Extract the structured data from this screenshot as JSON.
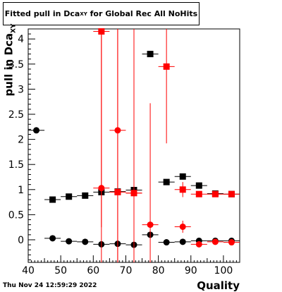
{
  "title": {
    "main": "Fitted pull in Dca",
    "sub": "XY",
    "rest": " for Global Rec All NoHits"
  },
  "ylabel": {
    "main": "pull in Dca",
    "sub": "XY"
  },
  "xlabel": "Quality",
  "timestamp": "Thu Nov 24 12:59:29 2022",
  "chart_data": {
    "type": "scatter",
    "xlim": [
      40,
      105
    ],
    "ylim": [
      -0.45,
      4.2
    ],
    "x_ticks": [
      40,
      50,
      60,
      70,
      80,
      90,
      100
    ],
    "y_ticks": [
      0,
      0.5,
      1,
      1.5,
      2,
      2.5,
      3,
      3.5,
      4
    ],
    "grid": false,
    "series": [
      {
        "marker": "square",
        "color": "#000000",
        "points": [
          {
            "x": 47.5,
            "y": 0.8,
            "ex": 2.5,
            "ey": 0.03
          },
          {
            "x": 52.5,
            "y": 0.86,
            "ex": 2.5,
            "ey": 0.03
          },
          {
            "x": 57.5,
            "y": 0.88,
            "ex": 2.5,
            "ey": 0.03
          },
          {
            "x": 62.5,
            "y": 0.95,
            "ex": 2.5,
            "ey": 0.03
          },
          {
            "x": 67.5,
            "y": 0.96,
            "ex": 2.5,
            "ey": 0.03
          },
          {
            "x": 72.5,
            "y": 0.99,
            "ex": 2.5,
            "ey": 0.03
          },
          {
            "x": 77.5,
            "y": 3.7,
            "ex": 2.5,
            "ey": 0.05
          },
          {
            "x": 82.5,
            "y": 1.15,
            "ex": 2.5,
            "ey": 0.03
          },
          {
            "x": 87.5,
            "y": 1.26,
            "ex": 2.5,
            "ey": 0.03
          },
          {
            "x": 92.5,
            "y": 1.08,
            "ex": 2.5,
            "ey": 0.03
          },
          {
            "x": 97.5,
            "y": 0.92,
            "ex": 2.5,
            "ey": 0.03
          },
          {
            "x": 102.5,
            "y": 0.91,
            "ex": 2.5,
            "ey": 0.03
          }
        ]
      },
      {
        "marker": "circle",
        "color": "#000000",
        "points": [
          {
            "x": 42.5,
            "y": 2.18,
            "ex": 2.5,
            "ey": 0.03
          },
          {
            "x": 47.5,
            "y": 0.03,
            "ex": 2.5,
            "ey": 0.02
          },
          {
            "x": 52.5,
            "y": -0.03,
            "ex": 2.5,
            "ey": 0.02
          },
          {
            "x": 57.5,
            "y": -0.04,
            "ex": 2.5,
            "ey": 0.02
          },
          {
            "x": 62.5,
            "y": -0.09,
            "ex": 2.5,
            "ey": 0.02
          },
          {
            "x": 67.5,
            "y": -0.08,
            "ex": 2.5,
            "ey": 0.02
          },
          {
            "x": 72.5,
            "y": -0.1,
            "ex": 2.5,
            "ey": 0.02
          },
          {
            "x": 77.5,
            "y": 0.1,
            "ex": 2.5,
            "ey": 0.04
          },
          {
            "x": 82.5,
            "y": -0.05,
            "ex": 2.5,
            "ey": 0.02
          },
          {
            "x": 87.5,
            "y": -0.04,
            "ex": 2.5,
            "ey": 0.02
          },
          {
            "x": 92.5,
            "y": -0.02,
            "ex": 2.5,
            "ey": 0.02
          },
          {
            "x": 97.5,
            "y": -0.02,
            "ex": 2.5,
            "ey": 0.02
          },
          {
            "x": 102.5,
            "y": -0.02,
            "ex": 2.5,
            "ey": 0.02
          }
        ]
      },
      {
        "marker": "square",
        "color": "#ff0000",
        "points": [
          {
            "x": 62.5,
            "y": 4.15,
            "ex": 2.5,
            "ey": 3.9
          },
          {
            "x": 67.5,
            "y": 0.95,
            "ex": 2.5,
            "ey": 3.9
          },
          {
            "x": 72.5,
            "y": 0.93,
            "ex": 2.5,
            "ey": 3.9
          },
          {
            "x": 82.5,
            "y": 3.45,
            "ex": 2.5,
            "ey": 1.53
          },
          {
            "x": 87.5,
            "y": 1.0,
            "ex": 2.5,
            "ey": 0.15
          },
          {
            "x": 92.5,
            "y": 0.91,
            "ex": 2.5,
            "ey": 0.04
          },
          {
            "x": 97.5,
            "y": 0.91,
            "ex": 2.5,
            "ey": 0.04
          },
          {
            "x": 102.5,
            "y": 0.91,
            "ex": 2.5,
            "ey": 0.03
          }
        ]
      },
      {
        "marker": "circle",
        "color": "#ff0000",
        "points": [
          {
            "x": 62.5,
            "y": 1.03,
            "ex": 2.5,
            "ey": 3.9
          },
          {
            "x": 67.5,
            "y": 2.18,
            "ex": 2.5,
            "ey": 3.9
          },
          {
            "x": 72.5,
            "y": 0.93,
            "ex": 2.5,
            "ey": 3.9
          },
          {
            "x": 77.5,
            "y": 0.3,
            "ex": 2.5,
            "ey": 2.42
          },
          {
            "x": 87.5,
            "y": 0.26,
            "ex": 2.5,
            "ey": 0.12
          },
          {
            "x": 92.5,
            "y": -0.09,
            "ex": 2.5,
            "ey": 0.04
          },
          {
            "x": 97.5,
            "y": -0.04,
            "ex": 2.5,
            "ey": 0.03
          },
          {
            "x": 102.5,
            "y": -0.05,
            "ex": 2.5,
            "ey": 0.03
          }
        ]
      }
    ]
  }
}
